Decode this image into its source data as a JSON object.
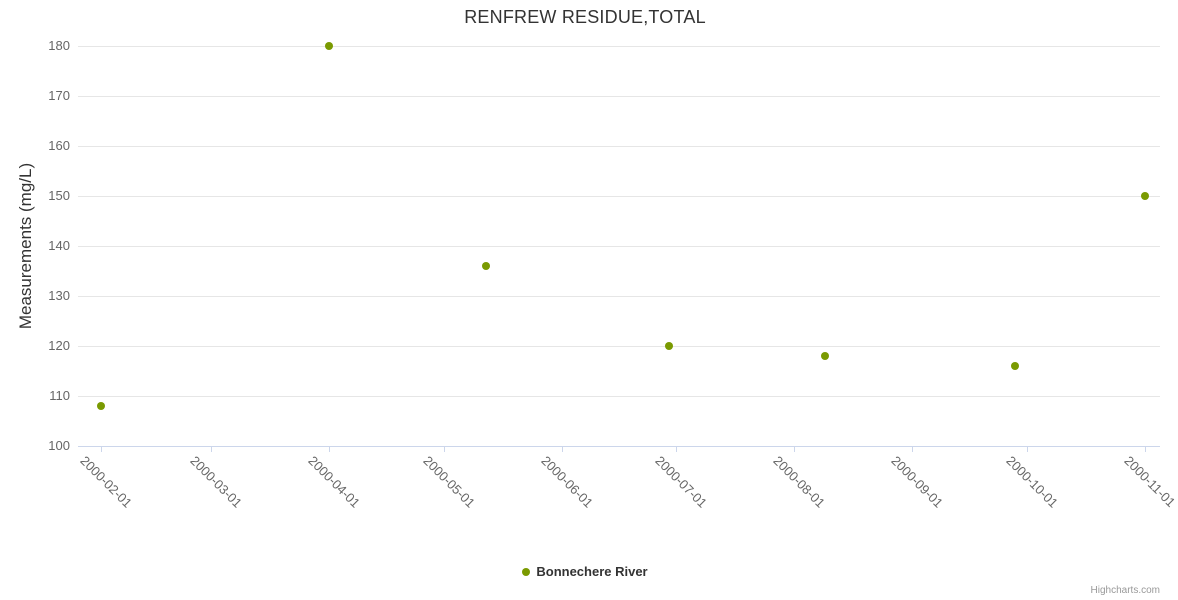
{
  "chart": {
    "credits": "Highcharts.com"
  },
  "chart_data": {
    "type": "scatter",
    "title": "RENFREW RESIDUE,TOTAL",
    "xlabel": "",
    "ylabel": "Measurements (mg/L)",
    "ylim": [
      100,
      180
    ],
    "y_ticks": [
      180,
      170,
      160,
      150,
      140,
      130,
      120,
      110,
      100
    ],
    "x_ticks": [
      "2000-02-01",
      "2000-03-01",
      "2000-04-01",
      "2000-05-01",
      "2000-06-01",
      "2000-07-01",
      "2000-08-01",
      "2000-09-01",
      "2000-10-01",
      "2000-11-01"
    ],
    "x_range": [
      "2000-01-26",
      "2000-11-05"
    ],
    "grid": "horizontal",
    "legend_position": "bottom-center",
    "series": [
      {
        "name": "Bonnechere River",
        "color": "#7a9a01",
        "points": [
          {
            "date": "2000-02-01",
            "value": 108
          },
          {
            "date": "2000-04-01",
            "value": 180
          },
          {
            "date": "2000-05-12",
            "value": 136
          },
          {
            "date": "2000-06-29",
            "value": 120
          },
          {
            "date": "2000-08-09",
            "value": 118
          },
          {
            "date": "2000-09-28",
            "value": 116
          },
          {
            "date": "2000-11-01",
            "value": 150
          }
        ]
      }
    ],
    "colors": {
      "grid": "#e6e6e6",
      "axis_line": "#ccd6eb",
      "tick_label": "#666666",
      "title": "#333333",
      "axis_title": "#333333",
      "legend_text": "#333333",
      "credits": "#999999"
    }
  }
}
